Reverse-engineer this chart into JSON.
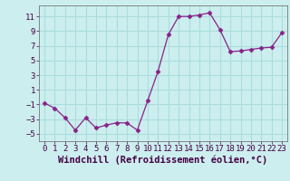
{
  "x": [
    0,
    1,
    2,
    3,
    4,
    5,
    6,
    7,
    8,
    9,
    10,
    11,
    12,
    13,
    14,
    15,
    16,
    17,
    18,
    19,
    20,
    21,
    22,
    23
  ],
  "y": [
    -0.8,
    -1.5,
    -2.8,
    -4.5,
    -2.8,
    -4.2,
    -3.8,
    -3.5,
    -3.5,
    -4.5,
    -0.5,
    3.5,
    8.5,
    11.0,
    11.0,
    11.2,
    11.5,
    9.2,
    6.2,
    6.3,
    6.5,
    6.7,
    6.8,
    8.8
  ],
  "line_color": "#882288",
  "marker": "D",
  "marker_size": 2.5,
  "bg_color": "#cceeee",
  "grid_color": "#aadddd",
  "xlabel": "Windchill (Refroidissement éolien,°C)",
  "tick_fontsize": 6.5,
  "xlabel_fontsize": 7.5,
  "ylim": [
    -6,
    12.5
  ],
  "xlim": [
    -0.5,
    23.5
  ],
  "yticks": [
    -5,
    -3,
    -1,
    1,
    3,
    5,
    7,
    9,
    11
  ],
  "xticks": [
    0,
    1,
    2,
    3,
    4,
    5,
    6,
    7,
    8,
    9,
    10,
    11,
    12,
    13,
    14,
    15,
    16,
    17,
    18,
    19,
    20,
    21,
    22,
    23
  ]
}
